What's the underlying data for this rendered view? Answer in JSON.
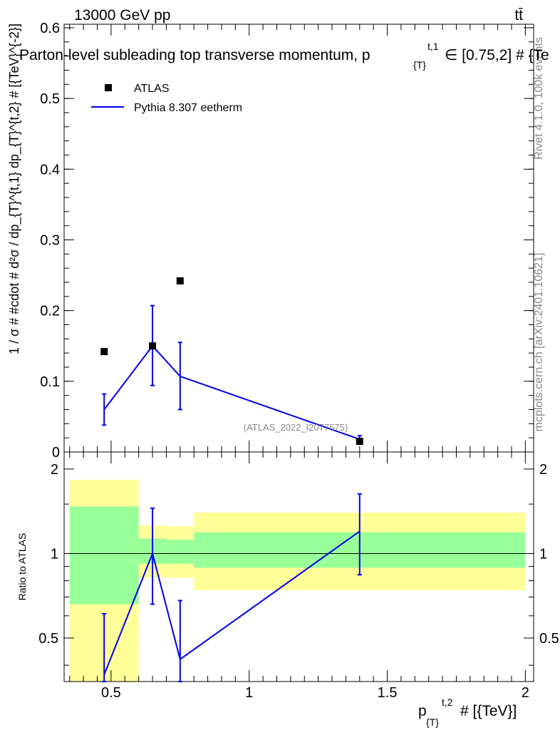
{
  "header": {
    "energy_label": "13000 GeV pp",
    "process_label": "tt̄",
    "plot_title": "Parton-level subleading top transverse momentum, p",
    "title_sub": "{T}",
    "title_sup": "t,1",
    "title_range": "∈ [0.75,2] # {Te"
  },
  "side": {
    "rivet": "Rivet 4.1.0,  100k events",
    "mcplots": "mcplots.cern.ch [arXiv:2401.10621]"
  },
  "watermark": "(ATLAS_2022_I2077575)",
  "axes": {
    "main_ylabel": "1 / σ # #cdot # d²σ / dp_{T}^{t,1} dp_{T}^{t,2} # [{TeV}^{-2}]",
    "ratio_ylabel": "Ratio to ATLAS",
    "xlabel_p": "p",
    "xlabel_sub": "{T}",
    "xlabel_sup": "t,2",
    "xlabel_rest": "# [{TeV}]"
  },
  "legend": {
    "data_label": "ATLAS",
    "mc_label": "Pythia 8.307 eetherm"
  },
  "colors": {
    "data": "#000000",
    "mc": "#0000ee",
    "band_inner": "#99ff99",
    "band_outer": "#ffff99"
  },
  "chart_data": [
    {
      "type": "scatter",
      "panel": "main",
      "xlim": [
        0.33,
        2.03
      ],
      "ylim": [
        0.0,
        0.605
      ],
      "yticks": [
        0,
        0.1,
        0.2,
        0.3,
        0.4,
        0.5,
        0.6
      ],
      "ytick_labels": [
        "0",
        "0.1",
        "0.2",
        "0.3",
        "0.4",
        "0.5",
        "0.6"
      ],
      "series": [
        {
          "name": "ATLAS",
          "x": [
            0.475,
            0.65,
            0.75,
            1.4
          ],
          "y": [
            0.142,
            0.15,
            0.242,
            0.015
          ]
        },
        {
          "name": "Pythia 8.307 eetherm",
          "x": [
            0.475,
            0.65,
            0.75,
            1.4
          ],
          "y": [
            0.06,
            0.15,
            0.107,
            0.018
          ],
          "yerr_low": [
            0.038,
            0.094,
            0.06,
            0.013
          ],
          "yerr_high": [
            0.082,
            0.207,
            0.155,
            0.023
          ]
        }
      ]
    },
    {
      "type": "line",
      "panel": "ratio",
      "xlim": [
        0.33,
        2.03
      ],
      "ylim": [
        0.35,
        2.3
      ],
      "xticks": [
        0.5,
        1,
        1.5,
        2
      ],
      "xtick_labels": [
        "0.5",
        "1",
        "1.5",
        "2"
      ],
      "yticks": [
        0.5,
        1,
        2
      ],
      "ytick_labels": [
        "0.5",
        "1",
        "2"
      ],
      "bands": [
        {
          "x0": 0.35,
          "x1": 0.6,
          "inner": [
            0.66,
            1.47
          ],
          "outer": [
            0.35,
            1.83
          ]
        },
        {
          "x0": 0.6,
          "x1": 0.7,
          "inner": [
            0.92,
            1.13
          ],
          "outer": [
            0.82,
            1.26
          ]
        },
        {
          "x0": 0.7,
          "x1": 0.8,
          "inner": [
            0.92,
            1.12
          ],
          "outer": [
            0.82,
            1.25
          ]
        },
        {
          "x0": 0.8,
          "x1": 2.0,
          "inner": [
            0.89,
            1.19
          ],
          "outer": [
            0.74,
            1.4
          ]
        }
      ],
      "series": [
        {
          "name": "Pythia 8.307 eetherm",
          "x": [
            0.475,
            0.65,
            0.75,
            1.4
          ],
          "y": [
            0.37,
            1.0,
            0.42,
            1.2
          ],
          "yerr_low": [
            0.35,
            0.66,
            0.35,
            0.84
          ],
          "yerr_high": [
            0.61,
            1.45,
            0.68,
            1.63
          ]
        }
      ]
    }
  ]
}
